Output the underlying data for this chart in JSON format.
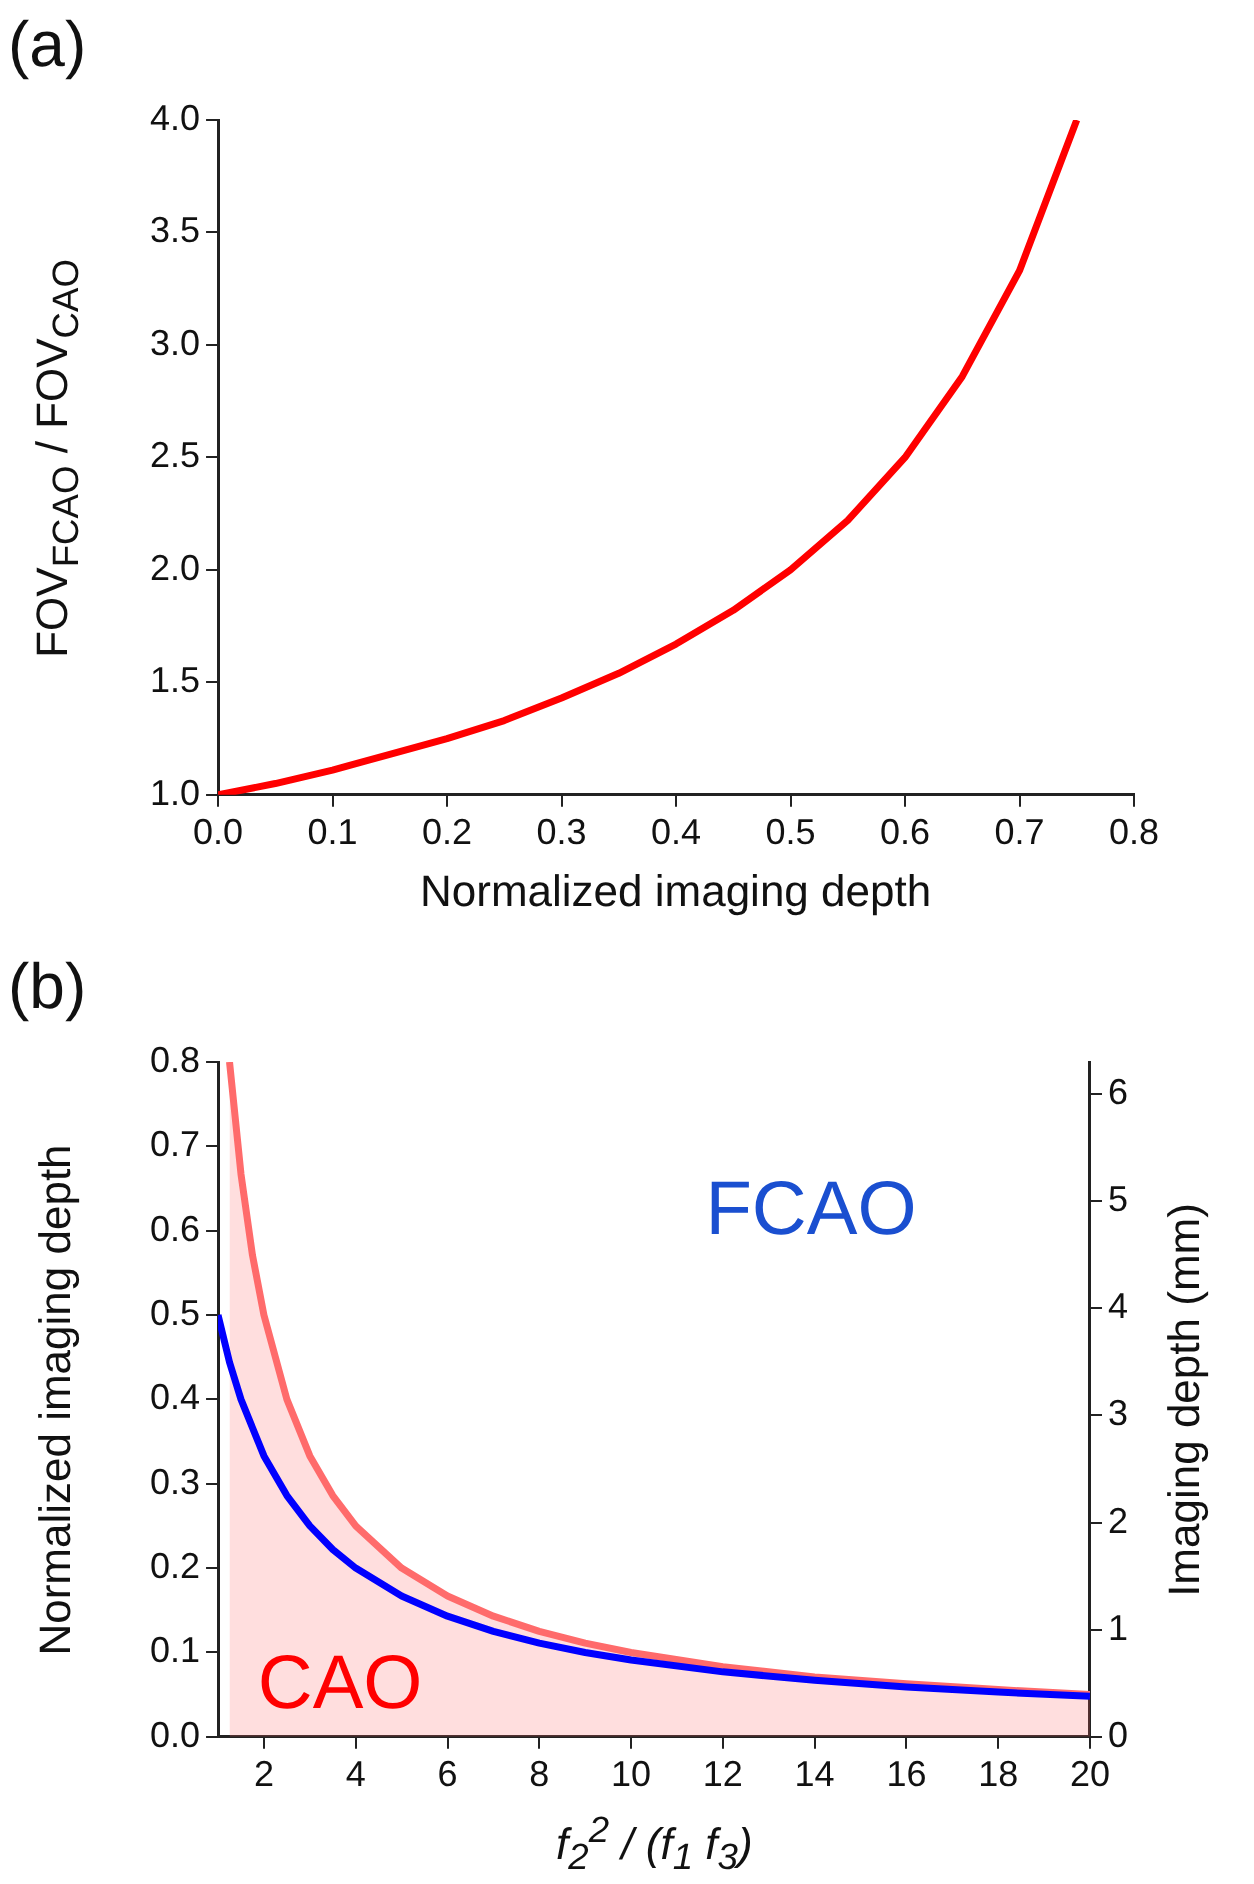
{
  "chart_data": [
    {
      "type": "line",
      "title": "(a)",
      "xlabel": "Normalized imaging depth",
      "ylabel": "FOV$_{FCAO}$ / FOV$_{CAO}$",
      "xlim": [
        0,
        0.8
      ],
      "xticks": [
        {
          "value": 0,
          "label": "0.0"
        },
        0.1,
        0.2,
        0.3,
        0.4,
        0.5,
        0.6,
        0.7,
        0.8
      ],
      "ylim": [
        1,
        4
      ],
      "yticks": [
        {
          "value": 1,
          "label": "1.0"
        },
        1.5,
        {
          "value": 2,
          "label": "2.0"
        },
        2.5,
        {
          "value": 3,
          "label": "3.0"
        },
        3.5,
        {
          "value": 4,
          "label": "4.0"
        }
      ],
      "grid": false,
      "legend": false,
      "series": [
        {
          "color": "#ff0000",
          "x": [
            0,
            0.05,
            0.1,
            0.15,
            0.2,
            0.25,
            0.3,
            0.35,
            0.4,
            0.45,
            0.5,
            0.55,
            0.6,
            0.65,
            0.7,
            0.75
          ],
          "values": [
            1.0,
            1.05,
            1.11,
            1.18,
            1.25,
            1.33,
            1.43,
            1.54,
            1.67,
            1.82,
            2.0,
            2.22,
            2.5,
            2.86,
            3.33,
            4.0
          ]
        }
      ]
    },
    {
      "type": "line",
      "title": "(b)",
      "xlabel": "f$_{2}$$^{2}$ / (f$_{1}$ f$_{3}$)",
      "ylabel": "Normalized imaging depth",
      "y2label": "Imaging depth (mm)",
      "xlim": [
        1,
        20
      ],
      "xticks": [
        2,
        4,
        6,
        8,
        10,
        12,
        14,
        16,
        18,
        20
      ],
      "ylim": [
        0,
        0.8
      ],
      "yticks": [
        {
          "value": 0,
          "label": "0.0"
        },
        0.1,
        0.2,
        0.3,
        0.4,
        0.5,
        0.6,
        0.7,
        0.8
      ],
      "y2lim": [
        0,
        6.3
      ],
      "y2ticks": [
        0,
        1,
        2,
        3,
        4,
        5,
        6
      ],
      "grid": false,
      "legend": false,
      "annotations": [
        "CAO",
        "FCAO"
      ],
      "series": [
        {
          "type": "area",
          "color": "#ff6b6b",
          "x": [
            1.25,
            1.5,
            1.75,
            2,
            2.5,
            3,
            3.5,
            4,
            5,
            6,
            7,
            8,
            9,
            10,
            12,
            14,
            16,
            18,
            20
          ],
          "values": [
            0.8,
            0.667,
            0.571,
            0.5,
            0.4,
            0.333,
            0.286,
            0.25,
            0.2,
            0.167,
            0.143,
            0.125,
            0.111,
            0.1,
            0.083,
            0.071,
            0.063,
            0.056,
            0.05
          ]
        },
        {
          "color": "#0000ff",
          "x": [
            1,
            1.25,
            1.5,
            2,
            2.5,
            3,
            3.5,
            4,
            5,
            6,
            7,
            8,
            9,
            10,
            12,
            14,
            16,
            18,
            20
          ],
          "values": [
            0.5,
            0.444,
            0.4,
            0.333,
            0.286,
            0.25,
            0.222,
            0.2,
            0.167,
            0.143,
            0.125,
            0.111,
            0.1,
            0.091,
            0.077,
            0.067,
            0.059,
            0.053,
            0.048
          ]
        }
      ]
    }
  ]
}
